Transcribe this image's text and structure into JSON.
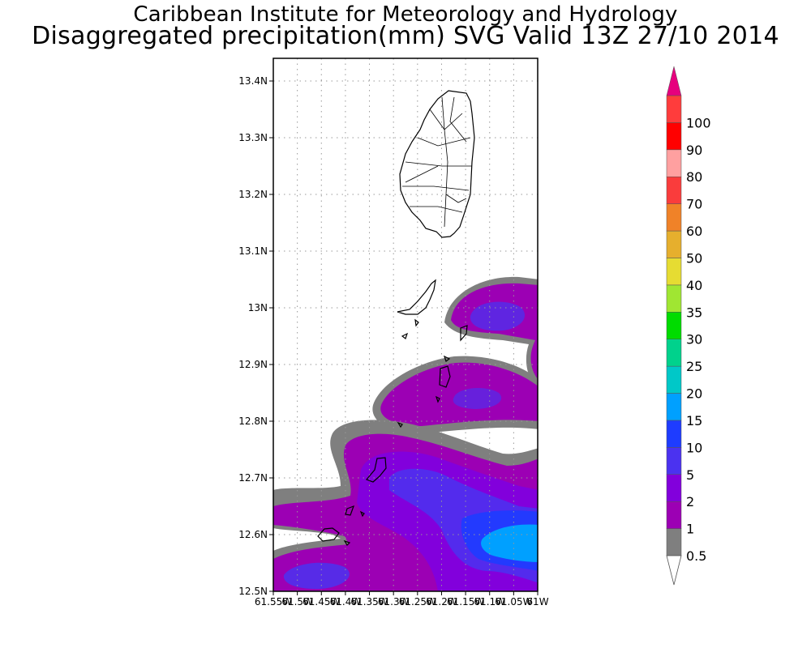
{
  "header": {
    "institution": "Caribbean Institute for Meteorology and Hydrology",
    "product": "Disaggregated precipitation(mm) SVG Valid 13Z 27/10 2014"
  },
  "map": {
    "lat_ticks": [
      "13.4N",
      "13.3N",
      "13.2N",
      "13.1N",
      "13N",
      "12.9N",
      "12.8N",
      "12.7N",
      "12.6N",
      "12.5N"
    ],
    "lon_ticks": [
      "61.55W",
      "61.5W",
      "61.45W",
      "61.4W",
      "61.35W",
      "61.3W",
      "61.25W",
      "61.2W",
      "61.15W",
      "61.1W",
      "61.05W",
      "61W"
    ],
    "lat_range": [
      12.5,
      13.44
    ],
    "lon_range": [
      -61.55,
      -61.0
    ],
    "grid": "dotted"
  },
  "colorbar": {
    "levels": [
      {
        "label": "0.5",
        "color": "#7f7f7f"
      },
      {
        "label": "1",
        "color": "#9c00b4"
      },
      {
        "label": "2",
        "color": "#8200dc"
      },
      {
        "label": "5",
        "color": "#4b32f0"
      },
      {
        "label": "10",
        "color": "#1e3cff"
      },
      {
        "label": "15",
        "color": "#00a0ff"
      },
      {
        "label": "20",
        "color": "#00c8c8"
      },
      {
        "label": "25",
        "color": "#00d28c"
      },
      {
        "label": "30",
        "color": "#00dc00"
      },
      {
        "label": "35",
        "color": "#a0e632"
      },
      {
        "label": "40",
        "color": "#e6dc32"
      },
      {
        "label": "50",
        "color": "#e6af2d"
      },
      {
        "label": "60",
        "color": "#f08228"
      },
      {
        "label": "70",
        "color": "#fa3c3c"
      },
      {
        "label": "80",
        "color": "#ffa0a0"
      },
      {
        "label": "90",
        "color": "#ff0000"
      },
      {
        "label": "100",
        "color": "#ff3c3c"
      }
    ],
    "over_color": "#e6007e"
  }
}
